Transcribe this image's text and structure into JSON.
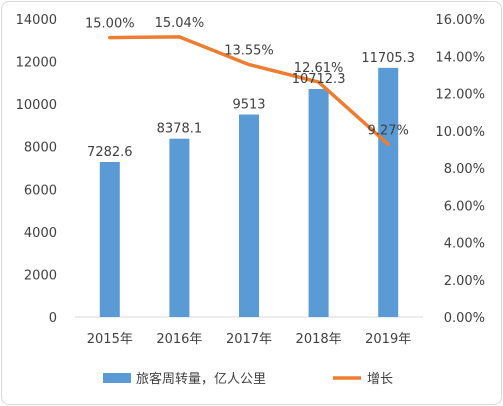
{
  "chart_data": {
    "type": "bar",
    "categories": [
      "2015年",
      "2016年",
      "2017年",
      "2018年",
      "2019年"
    ],
    "series": [
      {
        "name": "旅客周转量，亿人公里",
        "type": "bar",
        "axis": "left",
        "color": "#5b9bd5",
        "values": [
          7282.6,
          8378.1,
          9513,
          10712.3,
          11705.3
        ],
        "labels": [
          "7282.6",
          "8378.1",
          "9513",
          "10712.3",
          "11705.3"
        ]
      },
      {
        "name": "增长",
        "type": "line",
        "axis": "right",
        "color": "#ed7d31",
        "values": [
          0.15,
          0.1504,
          0.1355,
          0.1261,
          0.0927
        ],
        "labels": [
          "15.00%",
          "15.04%",
          "13.55%",
          "12.61%",
          "9.27%"
        ]
      }
    ],
    "y_left": {
      "range": [
        0,
        14000
      ],
      "ticks": [
        "0",
        "2000",
        "4000",
        "6000",
        "8000",
        "10000",
        "12000",
        "14000"
      ]
    },
    "y_right": {
      "range": [
        0,
        0.16
      ],
      "ticks": [
        "0.00%",
        "2.00%",
        "4.00%",
        "6.00%",
        "8.00%",
        "10.00%",
        "12.00%",
        "14.00%",
        "16.00%"
      ]
    },
    "grid": false,
    "legend_position": "bottom"
  }
}
